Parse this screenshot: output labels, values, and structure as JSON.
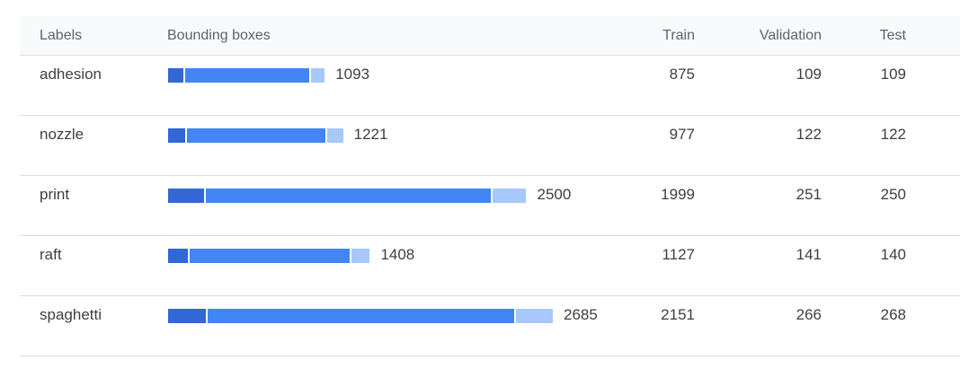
{
  "header": {
    "labels": "Labels",
    "bounding_boxes": "Bounding boxes",
    "train": "Train",
    "validation": "Validation",
    "test": "Test"
  },
  "colors": {
    "validation_segment": "#3367d6",
    "train_segment": "#4285f4",
    "test_segment": "#a8c7fa"
  },
  "rows": [
    {
      "label": "adhesion",
      "total": "1093",
      "train": "875",
      "validation": "109",
      "test": "109"
    },
    {
      "label": "nozzle",
      "total": "1221",
      "train": "977",
      "validation": "122",
      "test": "122"
    },
    {
      "label": "print",
      "total": "2500",
      "train": "1999",
      "validation": "251",
      "test": "250"
    },
    {
      "label": "raft",
      "total": "1408",
      "train": "1127",
      "validation": "141",
      "test": "140"
    },
    {
      "label": "spaghetti",
      "total": "2685",
      "train": "2151",
      "validation": "266",
      "test": "268"
    }
  ]
}
